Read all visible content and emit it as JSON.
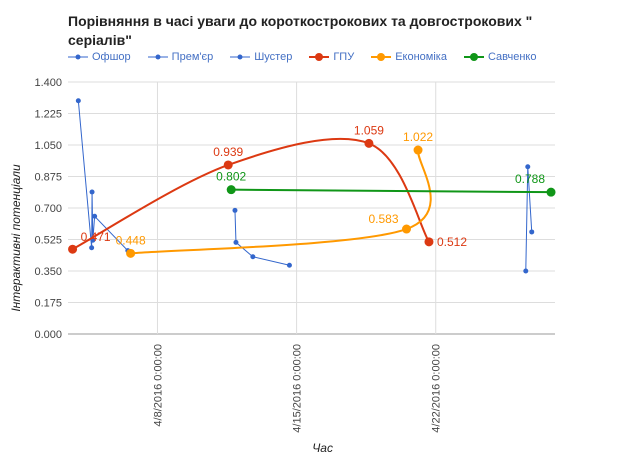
{
  "chart_data": {
    "type": "line",
    "title": "Порівняння в часі уваги до короткострокових та довгострокових \" серіалів\"",
    "xlabel": "Час",
    "ylabel": "Інтерактивні потенціали",
    "x_units": "days since 4/1/2016",
    "xlim": [
      2.5,
      27
    ],
    "ylim": [
      0,
      1.4
    ],
    "yticks": [
      "0.000",
      "0.175",
      "0.350",
      "0.525",
      "0.700",
      "0.875",
      "1.050",
      "1.225",
      "1.400"
    ],
    "xticks": [
      {
        "x": 7,
        "label": "4/8/2016 0:00:00"
      },
      {
        "x": 14,
        "label": "4/15/2016 0:00:00"
      },
      {
        "x": 21,
        "label": "4/22/2016 0:00:00"
      }
    ],
    "grid": true,
    "legend_position": "top",
    "series": [
      {
        "name": "Офшор",
        "color": "#3366cc",
        "smooth": false,
        "labels": false,
        "points": [
          [
            3.02,
            1.296
          ],
          [
            3.69,
            0.479
          ],
          [
            3.71,
            0.789
          ],
          [
            3.75,
            0.521
          ],
          [
            3.84,
            0.654
          ],
          [
            5.51,
            0.463
          ]
        ]
      },
      {
        "name": "Прем'єр",
        "color": "#3366cc",
        "smooth": false,
        "labels": false,
        "points": [
          [
            10.9,
            0.687
          ],
          [
            10.95,
            0.509
          ],
          [
            11.8,
            0.429
          ],
          [
            13.64,
            0.382
          ]
        ]
      },
      {
        "name": "Шустер",
        "color": "#3366cc",
        "smooth": false,
        "labels": false,
        "points": [
          [
            25.53,
            0.35
          ],
          [
            25.63,
            0.929
          ],
          [
            25.83,
            0.567
          ]
        ]
      },
      {
        "name": "ГПУ",
        "color": "#dc3912",
        "smooth": true,
        "labels": true,
        "points": [
          [
            2.73,
            0.471
          ],
          [
            10.56,
            0.939
          ],
          [
            17.64,
            1.059
          ],
          [
            20.66,
            0.512
          ]
        ],
        "point_labels": [
          "0.471",
          "0.939",
          "1.059",
          "0.512"
        ]
      },
      {
        "name": "Економіка",
        "color": "#ff9900",
        "smooth": true,
        "labels": true,
        "points": [
          [
            5.65,
            0.448
          ],
          [
            19.53,
            0.583
          ],
          [
            20.11,
            1.022
          ]
        ],
        "point_labels": [
          "0.448",
          "0.583",
          "1.022"
        ]
      },
      {
        "name": "Савченко",
        "color": "#109618",
        "smooth": false,
        "labels": true,
        "points": [
          [
            10.71,
            0.802
          ],
          [
            26.8,
            0.788
          ]
        ],
        "point_labels": [
          "0.802",
          "0.788"
        ]
      }
    ]
  }
}
